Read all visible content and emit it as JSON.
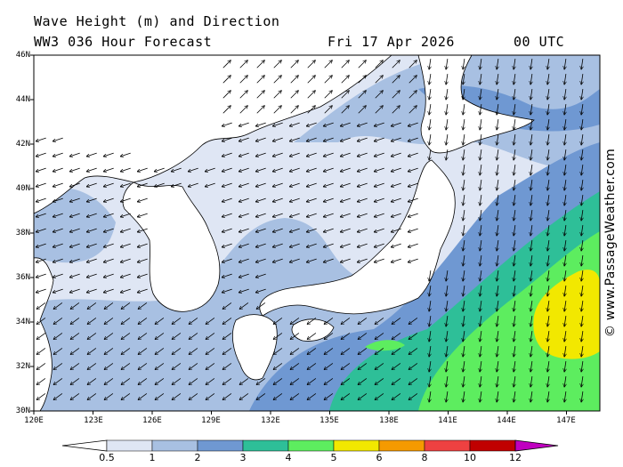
{
  "title": {
    "line1": "Wave Height (m) and Direction",
    "line2": "WW3 036 Hour Forecast",
    "date": "Fri 17 Apr 2026",
    "time": "00 UTC"
  },
  "lat_labels": [
    "46N",
    "44N",
    "42N",
    "40N",
    "38N",
    "36N",
    "34N",
    "32N",
    "30N"
  ],
  "lon_labels": [
    "120E",
    "123E",
    "126E",
    "129E",
    "132E",
    "135E",
    "138E",
    "141E",
    "144E",
    "147E"
  ],
  "watermark": "© www.PassageWeather.com",
  "colorbar": {
    "labels": [
      "0.5",
      "1",
      "2",
      "3",
      "4",
      "5",
      "6",
      "8",
      "10",
      "12"
    ],
    "colors": [
      "#dfe6f4",
      "#a8c0e2",
      "#6f98d2",
      "#2ebf98",
      "#5ded5f",
      "#f2e800",
      "#f59a00",
      "#ee4141",
      "#c00000",
      "#c000c0"
    ]
  },
  "legend_colors": {
    "land": "#ffffff",
    "lt_0_5": "#dfe6f4",
    "0_5_1": "#a8c0e2",
    "1_2": "#6f98d2",
    "2_3": "#2ebf98",
    "3_4": "#5ded5f",
    "4_5": "#f2e800"
  }
}
